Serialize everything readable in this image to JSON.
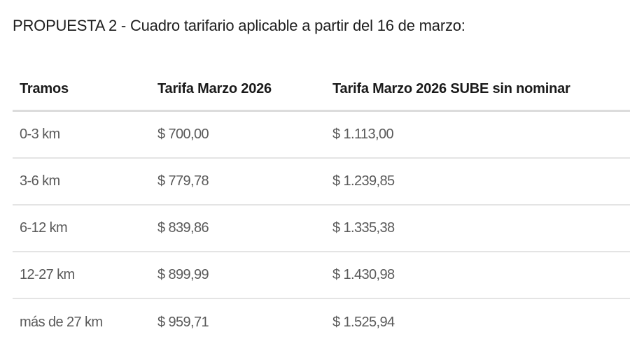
{
  "title": "PROPUESTA 2 - Cuadro tarifario aplicable a partir del 16 de marzo:",
  "table": {
    "headers": [
      "Tramos",
      "Tarifa Marzo 2026",
      "Tarifa Marzo 2026 SUBE sin nominar"
    ],
    "rows": [
      [
        "0-3 km",
        "$ 700,00",
        "$ 1.113,00"
      ],
      [
        "3-6 km",
        "$ 779,78",
        "$ 1.239,85"
      ],
      [
        "6-12 km",
        "$ 839,86",
        "$ 1.335,38"
      ],
      [
        "12-27 km",
        "$ 899,99",
        "$ 1.430,98"
      ],
      [
        "más de 27 km",
        "$ 959,71",
        "$ 1.525,94"
      ]
    ]
  }
}
